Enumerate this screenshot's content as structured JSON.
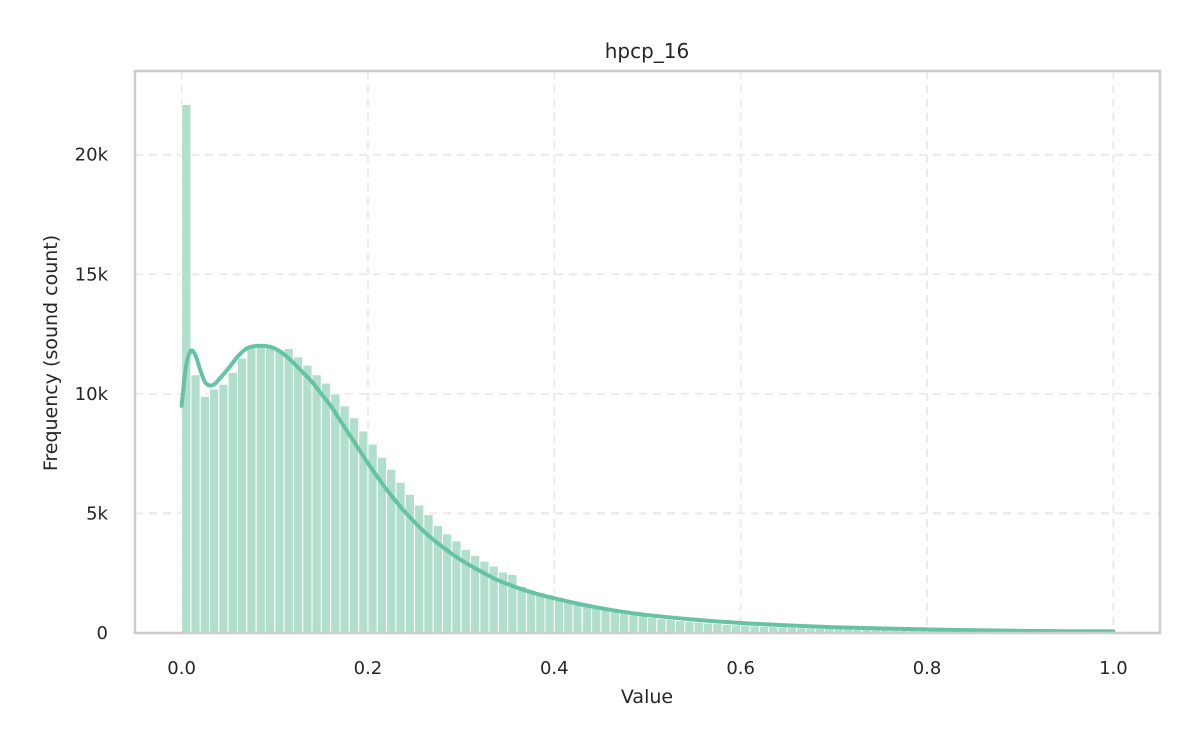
{
  "chart_data": {
    "type": "bar",
    "title": "hpcp_16",
    "xlabel": "Value",
    "ylabel": "Frequency (sound count)",
    "xlim": [
      -0.05,
      1.05
    ],
    "ylim": [
      0,
      23500
    ],
    "grid": true,
    "bin_width": 0.01,
    "x_ticks": [
      {
        "value": 0.0,
        "label": "0.0"
      },
      {
        "value": 0.2,
        "label": "0.2"
      },
      {
        "value": 0.4,
        "label": "0.4"
      },
      {
        "value": 0.6,
        "label": "0.6"
      },
      {
        "value": 0.8,
        "label": "0.8"
      },
      {
        "value": 1.0,
        "label": "1.0"
      }
    ],
    "y_ticks": [
      {
        "value": 0,
        "label": "0"
      },
      {
        "value": 5000,
        "label": "5k"
      },
      {
        "value": 10000,
        "label": "10k"
      },
      {
        "value": 15000,
        "label": "15k"
      },
      {
        "value": 20000,
        "label": "20k"
      }
    ],
    "bar_color": "#b2dfcc",
    "kde_color": "#66c2a5",
    "bin_starts": [
      0.0,
      0.01,
      0.02,
      0.03,
      0.04,
      0.05,
      0.06,
      0.07,
      0.08,
      0.09,
      0.1,
      0.11,
      0.12,
      0.13,
      0.14,
      0.15,
      0.16,
      0.17,
      0.18,
      0.19,
      0.2,
      0.21,
      0.22,
      0.23,
      0.24,
      0.25,
      0.26,
      0.27,
      0.28,
      0.29,
      0.3,
      0.31,
      0.32,
      0.33,
      0.34,
      0.35,
      0.36,
      0.37,
      0.38,
      0.39,
      0.4,
      0.41,
      0.42,
      0.43,
      0.44,
      0.45,
      0.46,
      0.47,
      0.48,
      0.49,
      0.5,
      0.51,
      0.52,
      0.53,
      0.54,
      0.55,
      0.56,
      0.57,
      0.58,
      0.59,
      0.6,
      0.61,
      0.62,
      0.63,
      0.64,
      0.65,
      0.66,
      0.67,
      0.68,
      0.69,
      0.7,
      0.71,
      0.72,
      0.73,
      0.74,
      0.75,
      0.76,
      0.77,
      0.78,
      0.79,
      0.8,
      0.81,
      0.82,
      0.83,
      0.84,
      0.85,
      0.86,
      0.87,
      0.88,
      0.89,
      0.9,
      0.91,
      0.92,
      0.93,
      0.94,
      0.95,
      0.96,
      0.97,
      0.98,
      0.99
    ],
    "counts": [
      22100,
      10800,
      9900,
      10200,
      10400,
      10900,
      11500,
      12000,
      12100,
      12000,
      11850,
      11900,
      11550,
      11200,
      10800,
      10450,
      10000,
      9500,
      9000,
      8450,
      7900,
      7350,
      6850,
      6300,
      5800,
      5350,
      4950,
      4500,
      4150,
      3850,
      3500,
      3250,
      3000,
      2800,
      2550,
      2450,
      1950,
      1800,
      1700,
      1600,
      1500,
      1300,
      1250,
      1150,
      1050,
      980,
      900,
      830,
      770,
      710,
      650,
      600,
      560,
      520,
      480,
      450,
      420,
      390,
      360,
      340,
      320,
      300,
      280,
      265,
      250,
      235,
      220,
      205,
      195,
      185,
      175,
      165,
      155,
      145,
      135,
      128,
      120,
      113,
      106,
      100,
      94,
      89,
      84,
      79,
      74,
      70,
      66,
      62,
      59,
      56,
      53,
      50,
      48,
      46,
      44,
      42,
      41,
      40,
      40,
      55
    ],
    "kde_x": [
      0.0,
      0.005,
      0.01,
      0.015,
      0.02,
      0.025,
      0.03,
      0.035,
      0.04,
      0.05,
      0.06,
      0.07,
      0.08,
      0.09,
      0.1,
      0.11,
      0.12,
      0.13,
      0.14,
      0.15,
      0.16,
      0.17,
      0.18,
      0.19,
      0.2,
      0.22,
      0.24,
      0.26,
      0.28,
      0.3,
      0.32,
      0.34,
      0.36,
      0.38,
      0.4,
      0.42,
      0.44,
      0.46,
      0.48,
      0.5,
      0.55,
      0.6,
      0.65,
      0.7,
      0.75,
      0.8,
      0.85,
      0.9,
      0.95,
      1.0
    ],
    "kde_y": [
      9500,
      11200,
      11800,
      11600,
      11000,
      10500,
      10350,
      10400,
      10600,
      11050,
      11550,
      11900,
      12000,
      12000,
      11900,
      11650,
      11300,
      10900,
      10500,
      10000,
      9500,
      8900,
      8300,
      7700,
      7100,
      6000,
      5050,
      4250,
      3600,
      3050,
      2600,
      2200,
      1900,
      1650,
      1450,
      1270,
      1110,
      970,
      850,
      750,
      560,
      420,
      320,
      240,
      190,
      150,
      115,
      90,
      75,
      70
    ]
  }
}
